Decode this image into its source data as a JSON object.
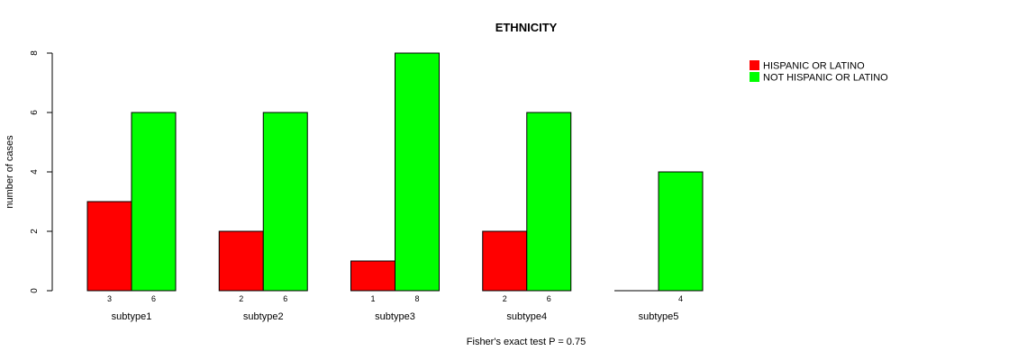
{
  "chart_data": {
    "type": "bar",
    "title": "ETHNICITY",
    "xlabel": "Fisher's exact test P = 0.75",
    "ylabel": "number of cases",
    "categories": [
      "subtype1",
      "subtype2",
      "subtype3",
      "subtype4",
      "subtype5"
    ],
    "series": [
      {
        "name": "HISPANIC OR LATINO",
        "color": "#ff0000",
        "values": [
          3,
          2,
          1,
          2,
          0
        ],
        "count_labels": [
          "3",
          "2",
          "1",
          "2",
          ""
        ]
      },
      {
        "name": "NOT HISPANIC OR LATINO",
        "color": "#00ff00",
        "values": [
          6,
          6,
          8,
          6,
          4
        ],
        "count_labels": [
          "6",
          "6",
          "8",
          "6",
          "4"
        ]
      }
    ],
    "ylim": [
      0,
      8
    ],
    "yticks": [
      0,
      2,
      4,
      6,
      8
    ],
    "legend_position": "top-right",
    "grid": false
  }
}
